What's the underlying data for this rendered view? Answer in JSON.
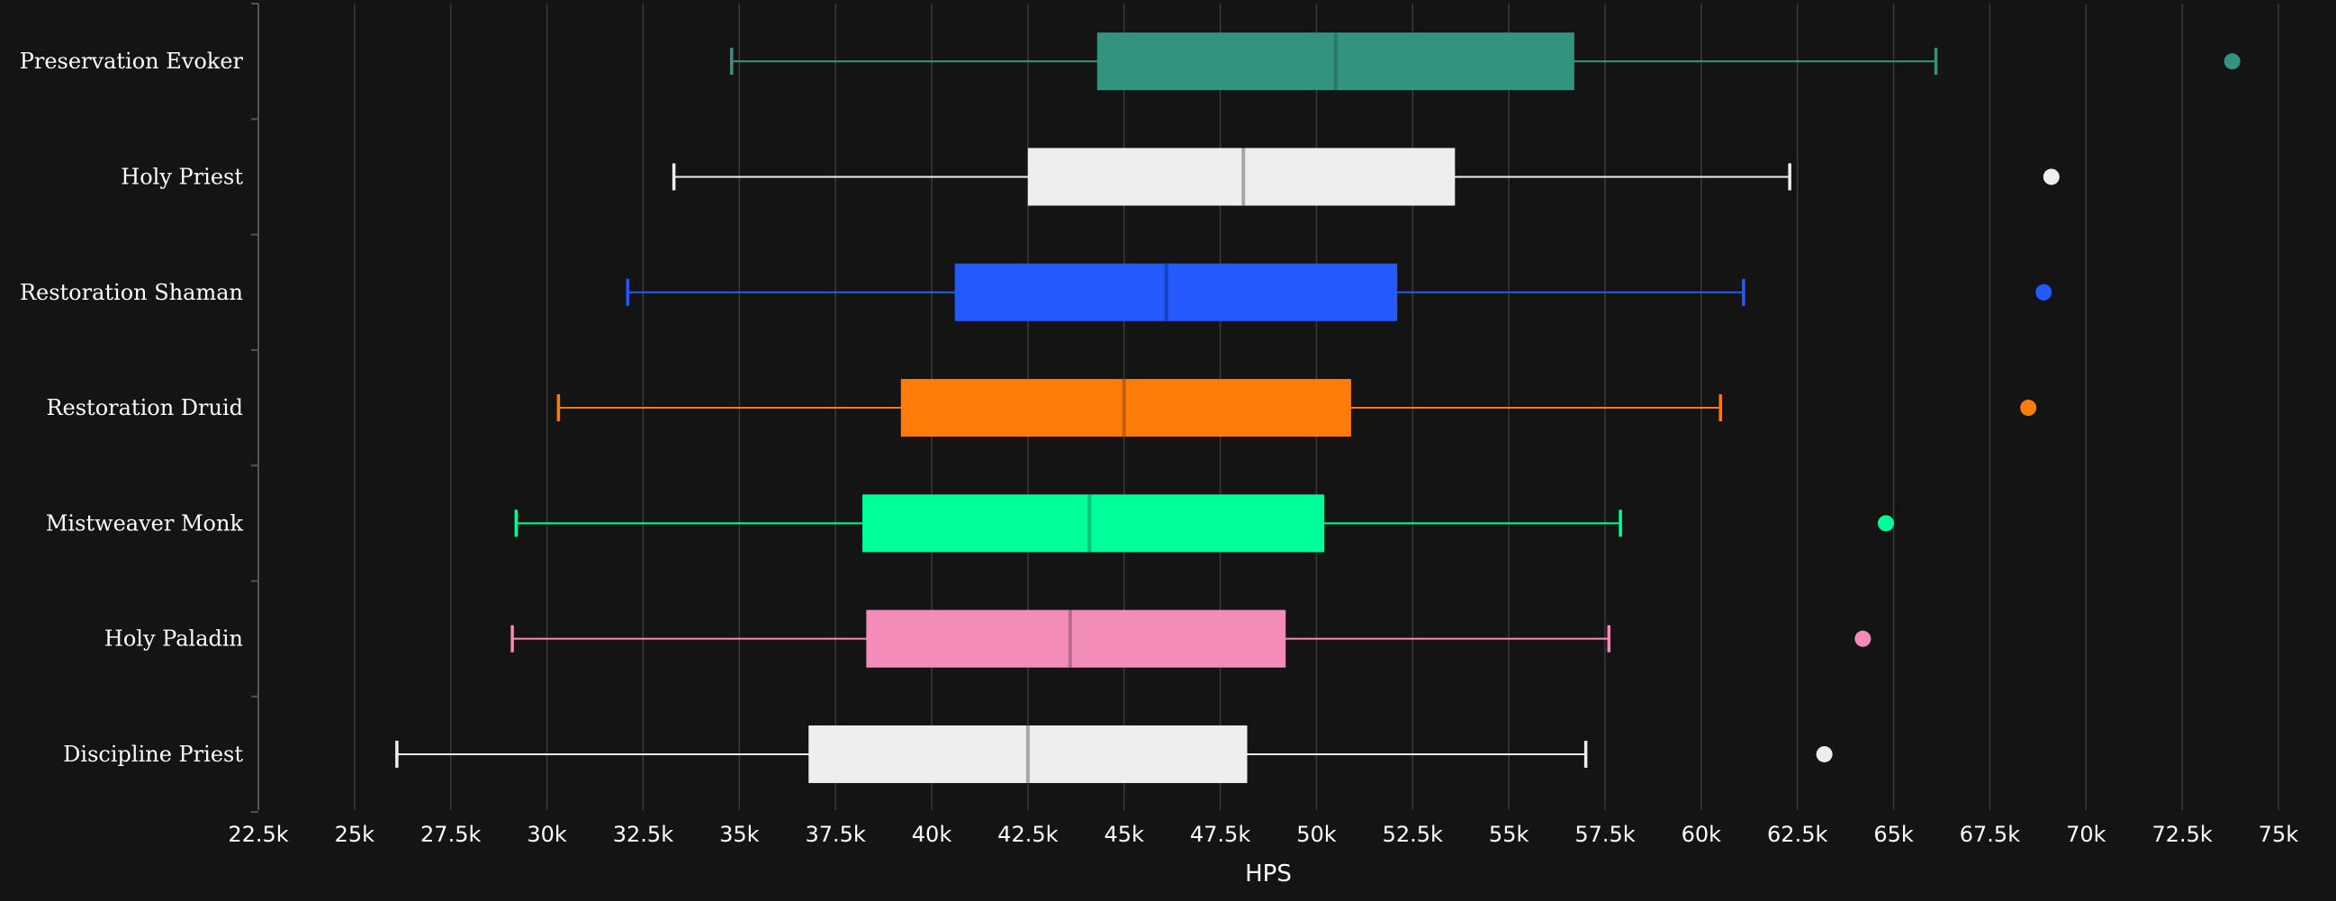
{
  "chart_data": {
    "type": "boxplot",
    "title": "",
    "xlabel": "HPS",
    "ylabel": "",
    "xlim": [
      22500,
      75000
    ],
    "x_ticks": [
      {
        "value": 22500,
        "label": "22.5k"
      },
      {
        "value": 25000,
        "label": "25k"
      },
      {
        "value": 27500,
        "label": "27.5k"
      },
      {
        "value": 30000,
        "label": "30k"
      },
      {
        "value": 32500,
        "label": "32.5k"
      },
      {
        "value": 35000,
        "label": "35k"
      },
      {
        "value": 37500,
        "label": "37.5k"
      },
      {
        "value": 40000,
        "label": "40k"
      },
      {
        "value": 42500,
        "label": "42.5k"
      },
      {
        "value": 45000,
        "label": "45k"
      },
      {
        "value": 47500,
        "label": "47.5k"
      },
      {
        "value": 50000,
        "label": "50k"
      },
      {
        "value": 52500,
        "label": "52.5k"
      },
      {
        "value": 55000,
        "label": "55k"
      },
      {
        "value": 57500,
        "label": "57.5k"
      },
      {
        "value": 60000,
        "label": "60k"
      },
      {
        "value": 62500,
        "label": "62.5k"
      },
      {
        "value": 65000,
        "label": "65k"
      },
      {
        "value": 67500,
        "label": "67.5k"
      },
      {
        "value": 70000,
        "label": "70k"
      },
      {
        "value": 72500,
        "label": "72.5k"
      },
      {
        "value": 75000,
        "label": "75k"
      }
    ],
    "series": [
      {
        "name": "Preservation Evoker",
        "color": "#33937f",
        "median_color": "#2a7a69",
        "whisker_low": 34800,
        "q1": 44300,
        "median": 50500,
        "q3": 56700,
        "whisker_high": 66100,
        "outlier": 73800
      },
      {
        "name": "Holy Priest",
        "color": "#eeeeee",
        "median_color": "#a8a8a8",
        "whisker_low": 33300,
        "q1": 42500,
        "median": 48100,
        "q3": 53600,
        "whisker_high": 62300,
        "outlier": 69100
      },
      {
        "name": "Restoration Shaman",
        "color": "#2359ff",
        "median_color": "#1a43c2",
        "whisker_low": 32100,
        "q1": 40600,
        "median": 46100,
        "q3": 52100,
        "whisker_high": 61100,
        "outlier": 68900
      },
      {
        "name": "Restoration Druid",
        "color": "#ff7c0a",
        "median_color": "#c45e08",
        "whisker_low": 30300,
        "q1": 39200,
        "median": 45000,
        "q3": 50900,
        "whisker_high": 60500,
        "outlier": 68500
      },
      {
        "name": "Mistweaver Monk",
        "color": "#00ff98",
        "median_color": "#00c476",
        "whisker_low": 29200,
        "q1": 38200,
        "median": 44100,
        "q3": 50200,
        "whisker_high": 57900,
        "outlier": 64800
      },
      {
        "name": "Holy Paladin",
        "color": "#f48cba",
        "median_color": "#b66a8c",
        "whisker_low": 29100,
        "q1": 38300,
        "median": 43600,
        "q3": 49200,
        "whisker_high": 57600,
        "outlier": 64200
      },
      {
        "name": "Discipline Priest",
        "color": "#eeeeee",
        "median_color": "#a8a8a8",
        "whisker_low": 26100,
        "q1": 36800,
        "median": 42500,
        "q3": 48200,
        "whisker_high": 57000,
        "outlier": 63200
      }
    ]
  }
}
